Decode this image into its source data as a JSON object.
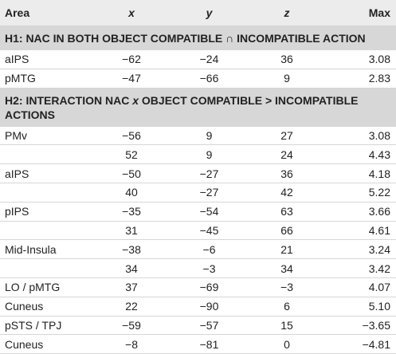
{
  "table": {
    "header": [
      "Area",
      "x",
      "y",
      "z",
      "Max"
    ],
    "sections": [
      {
        "title": [
          "H1: NAC IN BOTH OBJECT COMPATIBLE ∩ INCOMPATIBLE ACTION"
        ],
        "rows": [
          [
            "aIPS",
            "−62",
            "−24",
            "36",
            "3.08"
          ],
          [
            "pMTG",
            "−47",
            "−66",
            "9",
            "2.83"
          ]
        ]
      },
      {
        "title": [
          "H2: INTERACTION NAC ",
          "x",
          " OBJECT COMPATIBLE > INCOMPATIBLE ACTIONS"
        ],
        "rows": [
          [
            "PMv",
            "−56",
            "9",
            "27",
            "3.08"
          ],
          [
            null,
            "52",
            "9",
            "24",
            "4.43"
          ],
          [
            "aIPS",
            "−50",
            "−27",
            "36",
            "4.18"
          ],
          [
            null,
            "40",
            "−27",
            "42",
            "5.22"
          ],
          [
            "pIPS",
            "−35",
            "−54",
            "63",
            "3.66"
          ],
          [
            null,
            "31",
            "−45",
            "66",
            "4.61"
          ],
          [
            "Mid-Insula",
            "−38",
            "−6",
            "21",
            "3.24"
          ],
          [
            null,
            "34",
            "−3",
            "34",
            "3.42"
          ],
          [
            "LO / pMTG",
            "37",
            "−69",
            "−3",
            "4.07"
          ],
          [
            "Cuneus",
            "22",
            "−90",
            "6",
            "5.10"
          ],
          [
            "pSTS / TPJ",
            "−59",
            "−57",
            "15",
            "−3.65"
          ],
          [
            "Cuneus",
            "−8",
            "−81",
            "0",
            "−4.81"
          ]
        ]
      }
    ]
  }
}
